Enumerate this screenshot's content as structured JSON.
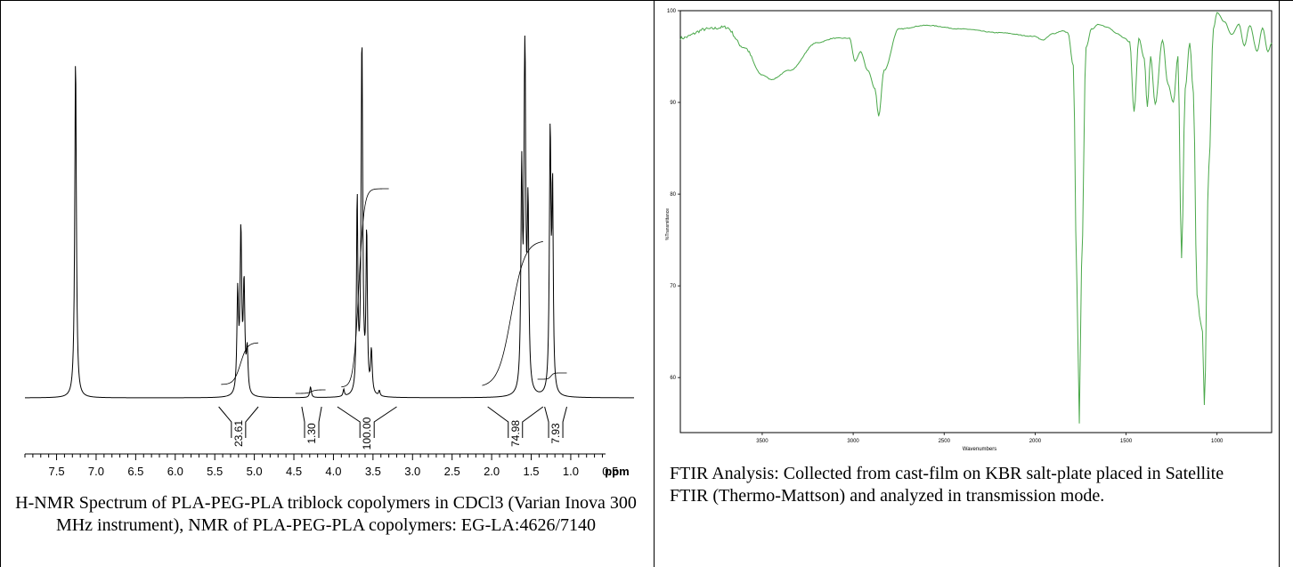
{
  "nmr": {
    "caption": "H-NMR Spectrum of PLA-PEG-PLA triblock copolymers in CDCl3 (Varian Inova 300 MHz instrument), NMR of PLA-PEG-PLA copolymers: EG-LA:4626/7140",
    "x_unit": "ppm"
  },
  "ftir": {
    "caption": "FTIR Analysis: Collected from cast-film on KBR salt-plate placed in Satellite FTIR (Thermo-Mattson) and analyzed in transmission mode.",
    "xlabel": "Wavenumbers",
    "ylabel": "%Transmittance"
  },
  "colors": {
    "ftir_line": "#4aa84a",
    "nmr_line": "#000000"
  },
  "chart_data": [
    {
      "type": "line",
      "chart": "nmr",
      "xlabel": "ppm",
      "xlim": [
        7.9,
        0.2
      ],
      "x_ticks": [
        7.5,
        7.0,
        6.5,
        6.0,
        5.5,
        5.0,
        4.5,
        4.0,
        3.5,
        3.0,
        2.5,
        2.0,
        1.5,
        1.0,
        0.5
      ],
      "peaks": [
        {
          "ppm": 7.26,
          "height": 0.96
        },
        {
          "ppm": 5.17,
          "height": 0.45
        },
        {
          "ppm": 4.29,
          "height": 0.03
        },
        {
          "ppm": 3.64,
          "height": 1.0
        },
        {
          "ppm": 3.52,
          "height": 0.12
        },
        {
          "ppm": 1.58,
          "height": 1.0
        },
        {
          "ppm": 1.26,
          "height": 0.73
        }
      ],
      "integrals": [
        {
          "ppm_from": 5.45,
          "ppm_to": 4.95,
          "value": "23.61"
        },
        {
          "ppm_from": 4.4,
          "ppm_to": 4.15,
          "value": "1.30"
        },
        {
          "ppm_from": 3.95,
          "ppm_to": 3.2,
          "value": "100.00"
        },
        {
          "ppm_from": 2.05,
          "ppm_to": 1.35,
          "value": "74.98"
        },
        {
          "ppm_from": 1.33,
          "ppm_to": 1.05,
          "value": "7.93"
        }
      ]
    },
    {
      "type": "line",
      "chart": "ftir",
      "xlabel": "Wavenumbers",
      "xlim": [
        3950,
        700
      ],
      "ylim": [
        54,
        100
      ],
      "x_ticks": [
        3500,
        3000,
        2500,
        2000,
        1500,
        1000
      ],
      "y_ticks": [
        60,
        70,
        80,
        90,
        100
      ],
      "series": [
        {
          "x": [
            3950,
            3800,
            3700,
            3600,
            3500,
            3450,
            3350,
            3200,
            3100,
            3020,
            2990,
            2960,
            2920,
            2880,
            2860,
            2830,
            2750,
            2600,
            2400,
            2200,
            2000,
            1960,
            1900,
            1850,
            1820,
            1790,
            1770,
            1757,
            1745,
            1720,
            1690,
            1650,
            1600,
            1550,
            1510,
            1480,
            1456,
            1430,
            1400,
            1383,
            1365,
            1340,
            1300,
            1270,
            1240,
            1215,
            1195,
            1175,
            1150,
            1130,
            1110,
            1090,
            1080,
            1070,
            1045,
            1020,
            1000,
            960,
            920,
            880,
            850,
            820,
            780,
            750,
            720,
            700
          ],
          "y": [
            97,
            98,
            98.2,
            96,
            93,
            92.5,
            93.5,
            96.5,
            97,
            97,
            94.5,
            95.5,
            93.5,
            91.5,
            88.5,
            93.5,
            98,
            98.4,
            98,
            97.6,
            97.2,
            96.8,
            97.5,
            97.8,
            97.6,
            94,
            70,
            55,
            72,
            96,
            98,
            98.5,
            98.2,
            97.5,
            97,
            96.6,
            89,
            97,
            94.8,
            89.5,
            95,
            89.8,
            96.8,
            92,
            90,
            95,
            73,
            91.5,
            96.5,
            91,
            69,
            66,
            65,
            57,
            83,
            98,
            99.8,
            98.8,
            97.4,
            98.5,
            96.2,
            98.4,
            95.6,
            98.1,
            95.5,
            96.5
          ]
        }
      ]
    }
  ]
}
